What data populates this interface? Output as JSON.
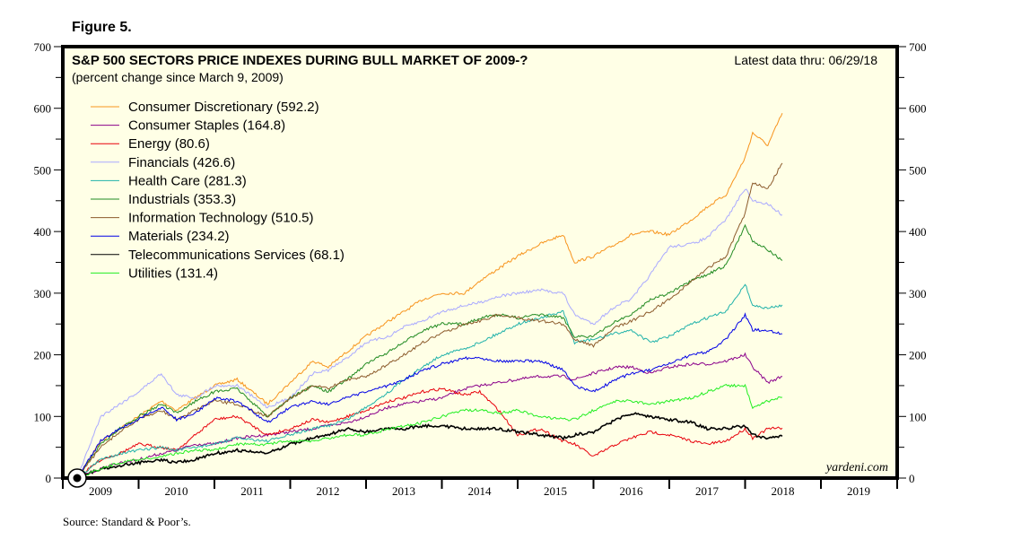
{
  "figure_label": "Figure 5.",
  "source": "Source: Standard & Poor’s.",
  "chart_data": {
    "type": "line",
    "title": "S&P 500 SECTORS PRICE INDEXES DURING BULL MARKET OF 2009-?",
    "subtitle": "(percent change since March 9, 2009)",
    "annotation": "Latest data thru: 06/29/18",
    "watermark": "yardeni.com",
    "xlabel": "",
    "ylabel": "",
    "xlim": [
      2009,
      2020
    ],
    "ylim": [
      0,
      700
    ],
    "yticks": [
      0,
      100,
      200,
      300,
      400,
      500,
      600,
      700
    ],
    "ytick_labels": [
      "0",
      "100",
      "200",
      "300",
      "400",
      "500",
      "600",
      "700"
    ],
    "xtick_labels": [
      "2009",
      "2010",
      "2011",
      "2012",
      "2013",
      "2014",
      "2015",
      "2016",
      "2017",
      "2018",
      "2019"
    ],
    "legend_position": "top-left",
    "grid": false,
    "x": [
      2009.19,
      2009.5,
      2009.75,
      2010.0,
      2010.3,
      2010.5,
      2010.75,
      2011.0,
      2011.3,
      2011.7,
      2012.0,
      2012.3,
      2012.5,
      2012.75,
      2013.0,
      2013.3,
      2013.5,
      2013.75,
      2014.0,
      2014.3,
      2014.5,
      2014.75,
      2015.0,
      2015.3,
      2015.6,
      2015.75,
      2016.0,
      2016.3,
      2016.5,
      2016.75,
      2017.0,
      2017.3,
      2017.5,
      2017.75,
      2018.0,
      2018.1,
      2018.3,
      2018.49
    ],
    "series": [
      {
        "name": "Consumer Discretionary",
        "value_label": "(592.2)",
        "color": "#f7941d",
        "values": [
          0,
          60,
          80,
          100,
          125,
          110,
          130,
          150,
          160,
          120,
          155,
          190,
          180,
          205,
          230,
          255,
          270,
          290,
          300,
          300,
          320,
          340,
          360,
          380,
          395,
          350,
          360,
          380,
          395,
          400,
          395,
          420,
          440,
          460,
          520,
          560,
          540,
          592
        ]
      },
      {
        "name": "Consumer Staples",
        "value_label": "(164.8)",
        "color": "#8b008b",
        "values": [
          0,
          15,
          25,
          30,
          40,
          45,
          55,
          55,
          65,
          70,
          75,
          80,
          85,
          90,
          100,
          115,
          120,
          125,
          130,
          145,
          150,
          155,
          160,
          165,
          165,
          160,
          170,
          180,
          180,
          170,
          180,
          185,
          185,
          190,
          200,
          180,
          155,
          165
        ]
      },
      {
        "name": "Energy",
        "value_label": "(80.6)",
        "color": "#e8000b",
        "values": [
          0,
          30,
          40,
          55,
          50,
          45,
          70,
          95,
          100,
          70,
          80,
          95,
          90,
          100,
          110,
          125,
          130,
          140,
          145,
          135,
          140,
          110,
          70,
          80,
          60,
          55,
          35,
          55,
          65,
          75,
          70,
          60,
          55,
          60,
          80,
          65,
          80,
          81
        ]
      },
      {
        "name": "Financials",
        "value_label": "(426.6)",
        "color": "#a9a9ff",
        "values": [
          0,
          100,
          120,
          140,
          170,
          135,
          130,
          150,
          150,
          115,
          130,
          170,
          175,
          195,
          220,
          230,
          245,
          255,
          270,
          280,
          285,
          295,
          300,
          305,
          300,
          265,
          250,
          280,
          290,
          330,
          375,
          380,
          390,
          420,
          470,
          450,
          445,
          427
        ]
      },
      {
        "name": "Health Care",
        "value_label": "(281.3)",
        "color": "#20b2aa",
        "values": [
          0,
          30,
          40,
          45,
          50,
          45,
          50,
          55,
          65,
          60,
          70,
          80,
          85,
          95,
          115,
          140,
          160,
          180,
          200,
          210,
          220,
          235,
          250,
          260,
          270,
          220,
          225,
          235,
          240,
          220,
          230,
          250,
          260,
          270,
          315,
          280,
          275,
          281
        ]
      },
      {
        "name": "Industrials",
        "value_label": "(353.3)",
        "color": "#228b22",
        "values": [
          0,
          55,
          80,
          100,
          120,
          105,
          125,
          140,
          145,
          100,
          130,
          150,
          140,
          160,
          185,
          205,
          220,
          240,
          250,
          250,
          260,
          265,
          260,
          265,
          260,
          230,
          230,
          255,
          265,
          290,
          300,
          320,
          330,
          345,
          410,
          385,
          370,
          353
        ]
      },
      {
        "name": "Information Technology",
        "value_label": "(510.5)",
        "color": "#8b5a2b",
        "values": [
          0,
          50,
          75,
          95,
          110,
          95,
          110,
          125,
          120,
          100,
          130,
          150,
          145,
          160,
          165,
          185,
          200,
          220,
          235,
          250,
          255,
          265,
          260,
          255,
          250,
          225,
          215,
          245,
          255,
          270,
          290,
          320,
          340,
          360,
          430,
          480,
          470,
          511
        ]
      },
      {
        "name": "Materials",
        "value_label": "(234.2)",
        "color": "#0000e6",
        "values": [
          0,
          60,
          80,
          95,
          115,
          95,
          105,
          130,
          125,
          90,
          115,
          125,
          120,
          130,
          140,
          150,
          160,
          175,
          185,
          195,
          195,
          190,
          190,
          190,
          175,
          150,
          140,
          160,
          170,
          175,
          185,
          200,
          205,
          225,
          265,
          240,
          240,
          234
        ]
      },
      {
        "name": "Telecommunications Services",
        "value_label": "(68.1)",
        "color": "#000000",
        "values": [
          0,
          15,
          20,
          25,
          30,
          25,
          30,
          40,
          45,
          40,
          55,
          65,
          70,
          80,
          75,
          80,
          80,
          85,
          85,
          80,
          80,
          80,
          75,
          70,
          65,
          70,
          75,
          95,
          105,
          100,
          95,
          90,
          80,
          80,
          85,
          70,
          65,
          68
        ]
      },
      {
        "name": "Utilities",
        "value_label": "(131.4)",
        "color": "#22ee22",
        "values": [
          0,
          15,
          25,
          30,
          35,
          40,
          45,
          45,
          55,
          55,
          60,
          60,
          65,
          70,
          70,
          80,
          85,
          90,
          100,
          110,
          110,
          105,
          110,
          100,
          95,
          95,
          110,
          125,
          125,
          120,
          125,
          130,
          140,
          150,
          150,
          115,
          125,
          131
        ]
      }
    ]
  }
}
